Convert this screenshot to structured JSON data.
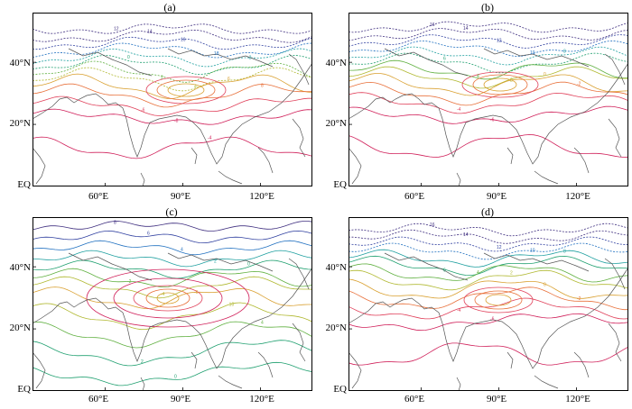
{
  "figure": {
    "panels": [
      {
        "id": "a",
        "title": "(a)",
        "lat_labels": [
          "40°N",
          "20°N",
          "EQ"
        ],
        "lon_labels": [
          "60°E",
          "90°E",
          "120°E"
        ],
        "contour_labels": [
          "12",
          "14",
          "16",
          "18",
          "-2",
          "0",
          "2",
          "4",
          "6",
          "8",
          "-6",
          "-8",
          "-4"
        ]
      },
      {
        "id": "b",
        "title": "(b)",
        "lat_labels": [
          "40°N",
          "20°N",
          "EQ"
        ],
        "lon_labels": [
          "60°E",
          "90°E",
          "120°E"
        ],
        "contour_labels": [
          "16",
          "14",
          "12",
          "10",
          "8",
          "6",
          "4",
          "2",
          "0",
          "-2",
          "-4",
          "-6"
        ]
      },
      {
        "id": "c",
        "title": "(c)",
        "lat_labels": [
          "40°N",
          "20°N",
          "EQ"
        ],
        "lon_labels": [
          "60°E",
          "90°E",
          "120°E"
        ],
        "contour_labels": [
          "8",
          "6",
          "4",
          "2",
          "0",
          "-2",
          "-4",
          "-6",
          "-10",
          "4",
          "2",
          "0"
        ]
      },
      {
        "id": "d",
        "title": "(d)",
        "lat_labels": [
          "40°N",
          "20°N",
          "EQ"
        ],
        "lon_labels": [
          "60°E",
          "90°E",
          "120°E"
        ],
        "contour_labels": [
          "16",
          "14",
          "12",
          "10",
          "8",
          "6",
          "4",
          "2",
          "0",
          "-2",
          "-4",
          "-6"
        ]
      }
    ]
  },
  "colors": {
    "contour_scale": [
      "#d0205a",
      "#e0405a",
      "#e8703a",
      "#d9a030",
      "#b0b830",
      "#60b040",
      "#20a070",
      "#20a0a0",
      "#2070c0",
      "#3040a0",
      "#403080"
    ],
    "coast": "#555555",
    "frame": "#000000"
  }
}
